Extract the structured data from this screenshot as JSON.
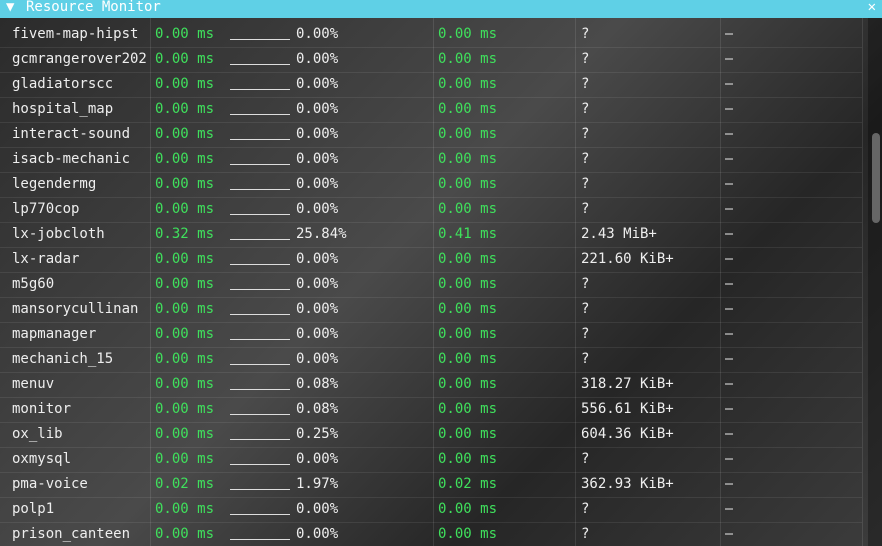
{
  "window": {
    "title": "Resource Monitor"
  },
  "table": {
    "rows": [
      [
        "fivem-map-hipst",
        "0.00 ms",
        "0.00%",
        "0.00 ms",
        "?",
        "–"
      ],
      [
        "gcmrangerover202",
        "0.00 ms",
        "0.00%",
        "0.00 ms",
        "?",
        "–"
      ],
      [
        "gladiatorscc",
        "0.00 ms",
        "0.00%",
        "0.00 ms",
        "?",
        "–"
      ],
      [
        "hospital_map",
        "0.00 ms",
        "0.00%",
        "0.00 ms",
        "?",
        "–"
      ],
      [
        "interact-sound",
        "0.00 ms",
        "0.00%",
        "0.00 ms",
        "?",
        "–"
      ],
      [
        "isacb-mechanic",
        "0.00 ms",
        "0.00%",
        "0.00 ms",
        "?",
        "–"
      ],
      [
        "legendermg",
        "0.00 ms",
        "0.00%",
        "0.00 ms",
        "?",
        "–"
      ],
      [
        "lp770cop",
        "0.00 ms",
        "0.00%",
        "0.00 ms",
        "?",
        "–"
      ],
      [
        "lx-jobcloth",
        "0.32 ms",
        "25.84%",
        "0.41 ms",
        "2.43 MiB+",
        "–"
      ],
      [
        "lx-radar",
        "0.00 ms",
        "0.00%",
        "0.00 ms",
        "221.60 KiB+",
        "–"
      ],
      [
        "m5g60",
        "0.00 ms",
        "0.00%",
        "0.00 ms",
        "?",
        "–"
      ],
      [
        "mansorycullinan",
        "0.00 ms",
        "0.00%",
        "0.00 ms",
        "?",
        "–"
      ],
      [
        "mapmanager",
        "0.00 ms",
        "0.00%",
        "0.00 ms",
        "?",
        "–"
      ],
      [
        "mechanich_15",
        "0.00 ms",
        "0.00%",
        "0.00 ms",
        "?",
        "–"
      ],
      [
        "menuv",
        "0.00 ms",
        "0.08%",
        "0.00 ms",
        "318.27 KiB+",
        "–"
      ],
      [
        "monitor",
        "0.00 ms",
        "0.08%",
        "0.00 ms",
        "556.61 KiB+",
        "–"
      ],
      [
        "ox_lib",
        "0.00 ms",
        "0.25%",
        "0.00 ms",
        "604.36 KiB+",
        "–"
      ],
      [
        "oxmysql",
        "0.00 ms",
        "0.00%",
        "0.00 ms",
        "?",
        "–"
      ],
      [
        "pma-voice",
        "0.02 ms",
        "1.97%",
        "0.02 ms",
        "362.93 KiB+",
        "–"
      ],
      [
        "polp1",
        "0.00 ms",
        "0.00%",
        "0.00 ms",
        "?",
        "–"
      ],
      [
        "prison_canteen",
        "0.00 ms",
        "0.00%",
        "0.00 ms",
        "?",
        "–"
      ]
    ]
  }
}
